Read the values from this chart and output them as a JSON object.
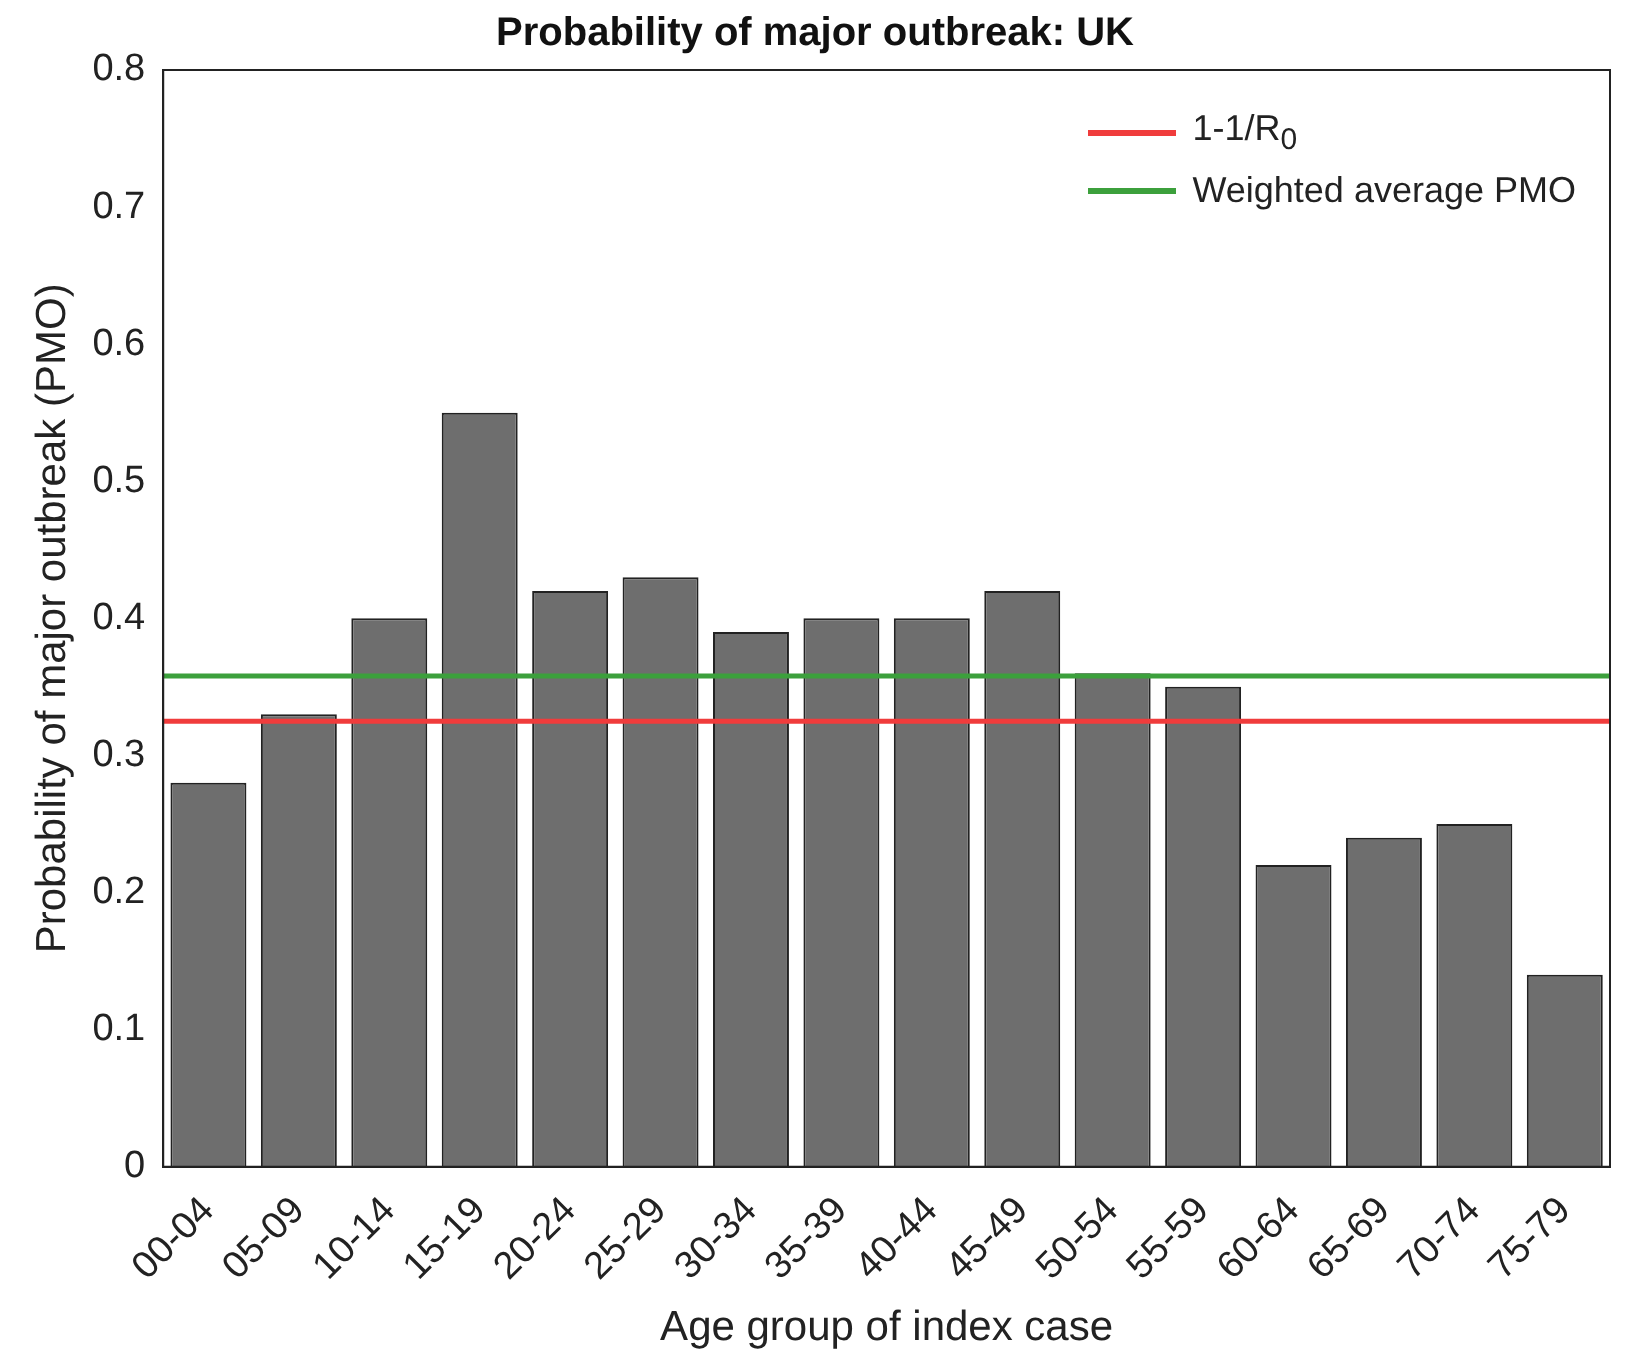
{
  "chart_data": {
    "type": "bar",
    "title": "Probability of major outbreak: UK",
    "xlabel": "Age group of index case",
    "ylabel": "Probability of major outbreak (PMO)",
    "categories": [
      "00-04",
      "05-09",
      "10-14",
      "15-19",
      "20-24",
      "25-29",
      "30-34",
      "35-39",
      "40-44",
      "45-49",
      "50-54",
      "55-59",
      "60-64",
      "65-69",
      "70-74",
      "75-79"
    ],
    "values": [
      0.28,
      0.33,
      0.4,
      0.55,
      0.42,
      0.43,
      0.39,
      0.4,
      0.4,
      0.42,
      0.36,
      0.35,
      0.22,
      0.24,
      0.25,
      0.14
    ],
    "color": "#6e6e6e",
    "ylim": [
      0,
      0.8
    ],
    "yticks": [
      0,
      0.1,
      0.2,
      0.3,
      0.4,
      0.5,
      0.6,
      0.7,
      0.8
    ],
    "ref_lines": [
      {
        "axis": "y",
        "value": 0.325,
        "label": "1-1/R$_{0}$",
        "color": "#f03c3c"
      },
      {
        "axis": "y",
        "value": 0.358,
        "label": "Weighted average PMO",
        "color": "#3ca03c"
      }
    ],
    "legend": "top right"
  }
}
